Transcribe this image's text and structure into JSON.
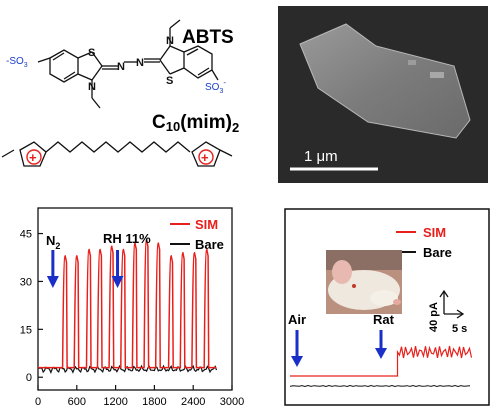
{
  "chemistry": {
    "compound_1_name": "ABTS",
    "compound_2_name": "C",
    "compound_2_sub": "10",
    "compound_2_tail": "(mim)",
    "compound_2_sub2": "2",
    "group_left": "O",
    "group_left_sub": "3",
    "group_left_prefix": "S",
    "group_left_charge": "-",
    "group_right": "SO",
    "group_right_sub": "3",
    "group_right_charge": "-",
    "atom_S": "S",
    "atom_N": "N",
    "plus": "+"
  },
  "sem_image": {
    "scale_label": "1 μm"
  },
  "chart_left": {
    "annotations": {
      "gas": "N",
      "gas_sub": "2",
      "humidity": "RH 11%"
    },
    "legend": [
      {
        "name": "SIM",
        "color": "#e8201c"
      },
      {
        "name": "Bare",
        "color": "#111111"
      }
    ],
    "x_ticks": [
      "0",
      "600",
      "1200",
      "1800",
      "2400",
      "3000"
    ],
    "y_ticks": [
      "0",
      "15",
      "30",
      "45"
    ]
  },
  "chart_right": {
    "legend": [
      {
        "name": "SIM",
        "color": "#e8201c"
      },
      {
        "name": "Bare",
        "color": "#111111"
      }
    ],
    "annotations": {
      "air": "Air",
      "rat": "Rat",
      "scale_y": "40 pA",
      "scale_x": "5 s"
    }
  },
  "chart_data": [
    {
      "type": "line",
      "x": [
        0,
        390,
        480,
        570,
        660,
        760,
        860,
        960,
        1060,
        1160,
        1260,
        1360,
        1460,
        1560,
        1660,
        1760,
        1860,
        1960,
        2060,
        2160,
        2260,
        2360,
        2460,
        2560,
        2660,
        2760,
        3000
      ],
      "series": [
        {
          "name": "SIM",
          "peaks_x": [
            420,
            600,
            790,
            960,
            1140,
            1320,
            1500,
            1680,
            1860,
            2060,
            2240,
            2420,
            2610
          ],
          "peaks_y": [
            38,
            38,
            40,
            40,
            41,
            40,
            42,
            43,
            42,
            38,
            39,
            39,
            40
          ],
          "baseline": 3
        },
        {
          "name": "Bare",
          "baseline": 2.5
        }
      ],
      "xlim": [
        0,
        3000
      ],
      "ylim": [
        -4,
        53
      ],
      "arrows_x": [
        230,
        1230
      ]
    },
    {
      "type": "line",
      "series": [
        {
          "name": "SIM",
          "baseline": 0,
          "step_at": 0.56,
          "step_to": 1
        },
        {
          "name": "Bare",
          "baseline": 0
        }
      ]
    }
  ]
}
